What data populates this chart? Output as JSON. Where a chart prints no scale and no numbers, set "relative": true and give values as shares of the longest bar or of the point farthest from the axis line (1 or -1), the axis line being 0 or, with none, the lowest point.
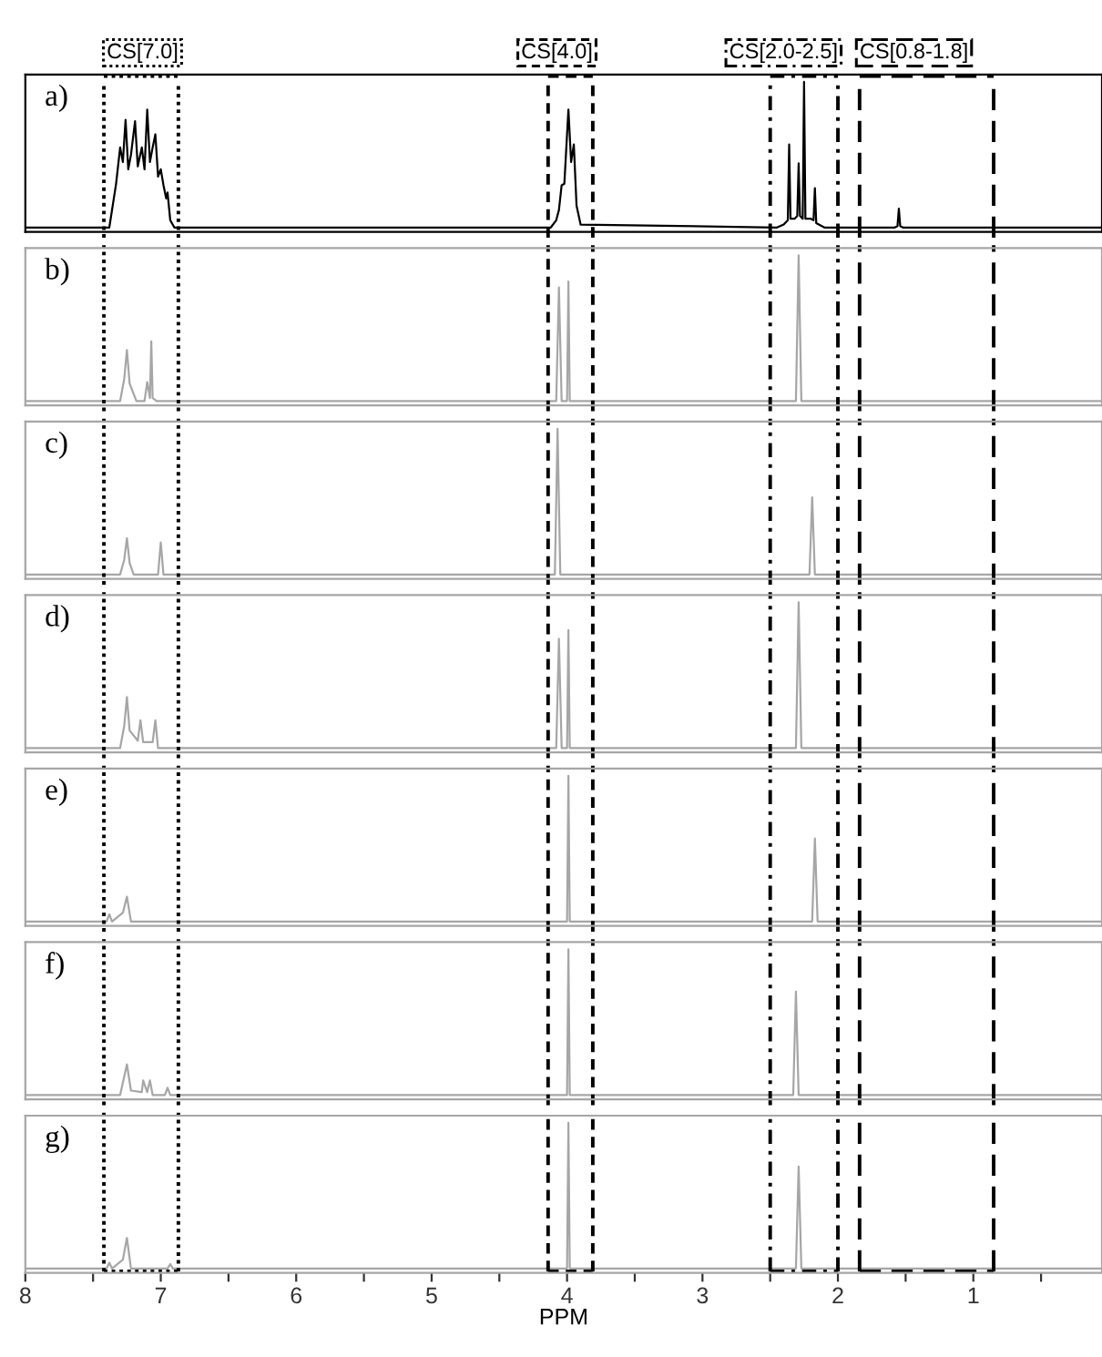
{
  "chart_data": [
    {
      "type": "line",
      "title": "a)",
      "xlim": [
        8,
        0.05
      ],
      "relative": true,
      "tick_labels": false,
      "annotations": [
        "CS[7.0]",
        "CS[4.0]",
        "CS[2.0-2.5]",
        "CS[0.8-1.8]"
      ],
      "ref_lines": [
        {
          "axis": "x",
          "value": 7.42,
          "line_style": "dotted"
        },
        {
          "axis": "x",
          "value": 6.87,
          "line_style": "dotted"
        },
        {
          "axis": "x",
          "value": 4.14,
          "line_style": "dashed"
        },
        {
          "axis": "x",
          "value": 3.81,
          "line_style": "dashed"
        },
        {
          "axis": "x",
          "value": 2.5,
          "line_style": "dashdot"
        },
        {
          "axis": "x",
          "value": 2.0,
          "line_style": "dashdot"
        },
        {
          "axis": "x",
          "value": 1.84,
          "line_style": "longdash"
        },
        {
          "axis": "x",
          "value": 0.85,
          "line_style": "longdash"
        }
      ],
      "series": [
        {
          "color": "#000000",
          "x": [
            8.0,
            7.38,
            7.33,
            7.3,
            7.28,
            7.26,
            7.24,
            7.22,
            7.19,
            7.17,
            7.14,
            7.12,
            7.1,
            7.08,
            7.06,
            7.04,
            7.02,
            7.0,
            6.98,
            6.96,
            6.95,
            6.93,
            6.9,
            4.12,
            4.08,
            4.06,
            4.04,
            4.02,
            3.99,
            3.97,
            3.95,
            3.93,
            3.9,
            2.45,
            2.4,
            2.37,
            2.36,
            2.35,
            2.32,
            2.3,
            2.29,
            2.28,
            2.26,
            2.25,
            2.24,
            2.2,
            2.18,
            2.17,
            2.16,
            2.1,
            1.58,
            1.56,
            1.55,
            1.54,
            1.52,
            0.05
          ],
          "values": [
            0,
            0,
            0.3,
            0.55,
            0.45,
            0.74,
            0.4,
            0.5,
            0.73,
            0.42,
            0.55,
            0.4,
            0.81,
            0.45,
            0.55,
            0.64,
            0.35,
            0.4,
            0.29,
            0.2,
            0.24,
            0.05,
            0,
            0,
            0.05,
            0.12,
            0.29,
            0.3,
            0.81,
            0.45,
            0.57,
            0.15,
            0.02,
            0,
            0.02,
            0.05,
            0.57,
            0.06,
            0.06,
            0.08,
            0.44,
            0.08,
            0.06,
            1.0,
            0.06,
            0.06,
            0.05,
            0.27,
            0.03,
            0,
            0,
            0.01,
            0.13,
            0.01,
            0,
            0
          ]
        }
      ]
    },
    {
      "type": "line",
      "title": "b)",
      "xlim": [
        8,
        0.05
      ],
      "relative": true,
      "tick_labels": false,
      "ref_lines": [
        {
          "axis": "x",
          "value": 7.42,
          "line_style": "dotted"
        },
        {
          "axis": "x",
          "value": 6.87,
          "line_style": "dotted"
        },
        {
          "axis": "x",
          "value": 4.14,
          "line_style": "dashed"
        },
        {
          "axis": "x",
          "value": 3.81,
          "line_style": "dashed"
        },
        {
          "axis": "x",
          "value": 2.5,
          "line_style": "dashdot"
        },
        {
          "axis": "x",
          "value": 2.0,
          "line_style": "dashdot"
        },
        {
          "axis": "x",
          "value": 1.84,
          "line_style": "longdash"
        },
        {
          "axis": "x",
          "value": 0.85,
          "line_style": "longdash"
        }
      ],
      "series": [
        {
          "color": "#a6a6a6",
          "x": [
            8.0,
            7.3,
            7.27,
            7.25,
            7.23,
            7.18,
            7.12,
            7.1,
            7.08,
            7.07,
            7.06,
            7.03,
            4.08,
            4.06,
            4.04,
            4.0,
            3.99,
            3.98,
            2.31,
            2.29,
            2.27,
            0.05
          ],
          "values": [
            0,
            0,
            0.15,
            0.35,
            0.12,
            0,
            0,
            0.13,
            0.02,
            0.41,
            0.02,
            0,
            0,
            0.78,
            0,
            0,
            0.82,
            0,
            0,
            1.0,
            0,
            0
          ]
        }
      ]
    },
    {
      "type": "line",
      "title": "c)",
      "xlim": [
        8,
        0.05
      ],
      "relative": true,
      "tick_labels": false,
      "ref_lines": [
        {
          "axis": "x",
          "value": 7.42,
          "line_style": "dotted"
        },
        {
          "axis": "x",
          "value": 6.87,
          "line_style": "dotted"
        },
        {
          "axis": "x",
          "value": 4.14,
          "line_style": "dashed"
        },
        {
          "axis": "x",
          "value": 3.81,
          "line_style": "dashed"
        },
        {
          "axis": "x",
          "value": 2.5,
          "line_style": "dashdot"
        },
        {
          "axis": "x",
          "value": 2.0,
          "line_style": "dashdot"
        },
        {
          "axis": "x",
          "value": 1.84,
          "line_style": "longdash"
        },
        {
          "axis": "x",
          "value": 0.85,
          "line_style": "longdash"
        }
      ],
      "series": [
        {
          "color": "#a6a6a6",
          "x": [
            8.0,
            7.3,
            7.27,
            7.25,
            7.23,
            7.2,
            7.02,
            7.0,
            6.98,
            4.09,
            4.07,
            4.05,
            2.21,
            2.19,
            2.17,
            0.05
          ],
          "values": [
            0,
            0,
            0.1,
            0.25,
            0.08,
            0,
            0,
            0.22,
            0,
            0,
            1.0,
            0,
            0,
            0.53,
            0,
            0
          ]
        }
      ]
    },
    {
      "type": "line",
      "title": "d)",
      "xlim": [
        8,
        0.05
      ],
      "relative": true,
      "tick_labels": false,
      "ref_lines": [
        {
          "axis": "x",
          "value": 7.42,
          "line_style": "dotted"
        },
        {
          "axis": "x",
          "value": 6.87,
          "line_style": "dotted"
        },
        {
          "axis": "x",
          "value": 4.14,
          "line_style": "dashed"
        },
        {
          "axis": "x",
          "value": 3.81,
          "line_style": "dashed"
        },
        {
          "axis": "x",
          "value": 2.5,
          "line_style": "dashdot"
        },
        {
          "axis": "x",
          "value": 2.0,
          "line_style": "dashdot"
        },
        {
          "axis": "x",
          "value": 1.84,
          "line_style": "longdash"
        },
        {
          "axis": "x",
          "value": 0.85,
          "line_style": "longdash"
        }
      ],
      "series": [
        {
          "color": "#a6a6a6",
          "x": [
            8.0,
            7.3,
            7.27,
            7.25,
            7.23,
            7.17,
            7.15,
            7.13,
            7.06,
            7.04,
            7.02,
            4.08,
            4.06,
            4.04,
            4.0,
            3.99,
            3.98,
            2.31,
            2.29,
            2.27,
            0.05
          ],
          "values": [
            0,
            0,
            0.15,
            0.35,
            0.12,
            0.05,
            0.19,
            0.04,
            0.04,
            0.19,
            0,
            0,
            0.75,
            0,
            0,
            0.81,
            0,
            0,
            1.0,
            0,
            0
          ]
        }
      ]
    },
    {
      "type": "line",
      "title": "e)",
      "xlim": [
        8,
        0.05
      ],
      "relative": true,
      "tick_labels": false,
      "ref_lines": [
        {
          "axis": "x",
          "value": 7.42,
          "line_style": "dotted"
        },
        {
          "axis": "x",
          "value": 6.87,
          "line_style": "dotted"
        },
        {
          "axis": "x",
          "value": 4.14,
          "line_style": "dashed"
        },
        {
          "axis": "x",
          "value": 3.81,
          "line_style": "dashed"
        },
        {
          "axis": "x",
          "value": 2.5,
          "line_style": "dashdot"
        },
        {
          "axis": "x",
          "value": 2.0,
          "line_style": "dashdot"
        },
        {
          "axis": "x",
          "value": 1.84,
          "line_style": "longdash"
        },
        {
          "axis": "x",
          "value": 0.85,
          "line_style": "longdash"
        }
      ],
      "series": [
        {
          "color": "#a6a6a6",
          "x": [
            8.0,
            7.4,
            7.38,
            7.36,
            7.28,
            7.25,
            7.22,
            4.0,
            3.99,
            3.98,
            2.19,
            2.17,
            2.15,
            0.05
          ],
          "values": [
            0,
            0,
            0.05,
            0,
            0.06,
            0.17,
            0,
            0,
            1.0,
            0,
            0,
            0.57,
            0,
            0
          ]
        }
      ]
    },
    {
      "type": "line",
      "title": "f)",
      "xlim": [
        8,
        0.05
      ],
      "relative": true,
      "tick_labels": false,
      "ref_lines": [
        {
          "axis": "x",
          "value": 7.42,
          "line_style": "dotted"
        },
        {
          "axis": "x",
          "value": 6.87,
          "line_style": "dotted"
        },
        {
          "axis": "x",
          "value": 4.14,
          "line_style": "dashed"
        },
        {
          "axis": "x",
          "value": 3.81,
          "line_style": "dashed"
        },
        {
          "axis": "x",
          "value": 2.5,
          "line_style": "dashdot"
        },
        {
          "axis": "x",
          "value": 2.0,
          "line_style": "dashdot"
        },
        {
          "axis": "x",
          "value": 1.84,
          "line_style": "longdash"
        },
        {
          "axis": "x",
          "value": 0.85,
          "line_style": "longdash"
        }
      ],
      "series": [
        {
          "color": "#a6a6a6",
          "x": [
            8.0,
            7.3,
            7.25,
            7.22,
            7.14,
            7.13,
            7.1,
            7.08,
            7.06,
            6.97,
            6.95,
            6.93,
            4.0,
            3.99,
            3.98,
            2.33,
            2.31,
            2.29,
            0.05
          ],
          "values": [
            0,
            0,
            0.21,
            0.03,
            0.02,
            0.1,
            0.02,
            0.1,
            0,
            0,
            0.05,
            0,
            0,
            1.0,
            0,
            0,
            0.71,
            0,
            0
          ]
        }
      ]
    },
    {
      "type": "line",
      "title": "g)",
      "xlim": [
        8,
        0.05
      ],
      "relative": true,
      "tick_labels": "x",
      "xlabel": "PPM",
      "xticks": [
        8,
        {
          "value": 7.5,
          "label": null
        },
        7,
        {
          "value": 6.5,
          "label": null
        },
        6,
        {
          "value": 5.5,
          "label": null
        },
        5,
        {
          "value": 4.5,
          "label": null
        },
        4,
        {
          "value": 3.5,
          "label": null
        },
        3,
        {
          "value": 2.5,
          "label": null
        },
        2,
        {
          "value": 1.5,
          "label": null
        },
        1,
        {
          "value": 0.5,
          "label": null
        }
      ],
      "ref_lines": [
        {
          "axis": "x",
          "value": 7.42,
          "line_style": "dotted"
        },
        {
          "axis": "x",
          "value": 6.87,
          "line_style": "dotted"
        },
        {
          "axis": "x",
          "value": 4.14,
          "line_style": "dashed"
        },
        {
          "axis": "x",
          "value": 3.81,
          "line_style": "dashed"
        },
        {
          "axis": "x",
          "value": 2.5,
          "line_style": "dashdot"
        },
        {
          "axis": "x",
          "value": 2.0,
          "line_style": "dashdot"
        },
        {
          "axis": "x",
          "value": 1.84,
          "line_style": "longdash"
        },
        {
          "axis": "x",
          "value": 0.85,
          "line_style": "longdash"
        }
      ],
      "series": [
        {
          "color": "#a6a6a6",
          "x": [
            8.0,
            7.4,
            7.38,
            7.36,
            7.28,
            7.25,
            7.22,
            6.95,
            6.93,
            6.91,
            4.0,
            3.99,
            3.98,
            2.31,
            2.29,
            2.27,
            0.05
          ],
          "values": [
            0,
            0,
            0.04,
            0,
            0.06,
            0.21,
            0,
            0,
            0.03,
            0,
            0,
            1.0,
            0,
            0,
            0.7,
            0,
            0
          ]
        }
      ]
    }
  ]
}
